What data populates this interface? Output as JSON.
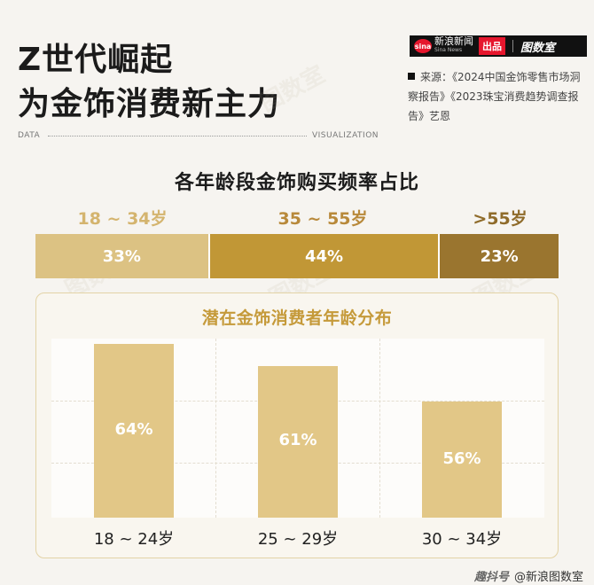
{
  "header": {
    "title_line1": "Z世代崛起",
    "title_line2": "为金饰消费新主力",
    "brand_logo_text": "sina",
    "brand_name": "新浪新闻",
    "brand_name_en": "Sina News",
    "brand_chupin": "出品",
    "brand_logo2": "图数室",
    "source": "来源：《2024中国金饰零售市场洞察报告》《2023珠宝消费趋势调查报告》艺恩",
    "label_data": "DATA",
    "label_vis": "VISUALIZATION",
    "watermark": "图数室"
  },
  "colors": {
    "seg1": "#dcc283",
    "seg2": "#c19736",
    "seg3": "#9a752f",
    "label1": "#dcc283",
    "label2": "#c19736",
    "label3": "#9a752f",
    "bar": "#e2c787"
  },
  "footer": {
    "brand": "趣抖号",
    "text": "@新浪图数室"
  },
  "chart_data": [
    {
      "type": "bar",
      "title": "各年龄段金饰购买频率占比",
      "categories": [
        "18 ~ 34岁",
        "35 ~ 55岁",
        ">55岁"
      ],
      "values": [
        33,
        44,
        23
      ],
      "labels": [
        "33%",
        "44%",
        "23%"
      ],
      "stacked": true
    },
    {
      "type": "bar",
      "title": "潜在金饰消费者年龄分布",
      "categories": [
        "18 ~ 24岁",
        "25 ~ 29岁",
        "30 ~ 34岁"
      ],
      "values": [
        64,
        61,
        56
      ],
      "labels": [
        "64%",
        "61%",
        "56%"
      ]
    }
  ]
}
